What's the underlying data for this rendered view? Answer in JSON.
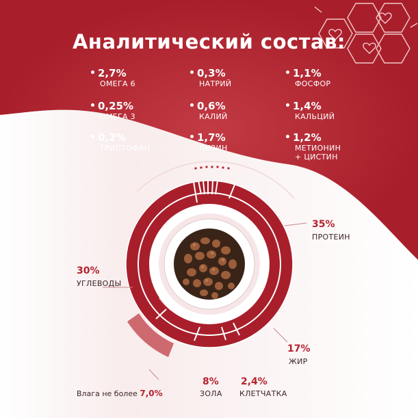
{
  "title": "Аналитический состав:",
  "colors": {
    "accent": "#b3242f",
    "dark_red": "#a81f2b",
    "light": "#ffffff"
  },
  "nutrients": [
    {
      "value": "2,7%",
      "label": "ОМЕГА 6"
    },
    {
      "value": "0,3%",
      "label": "НАТРИЙ"
    },
    {
      "value": "1,1%",
      "label": "ФОСФОР"
    },
    {
      "value": "0,25%",
      "label": "ОМЕГА 3"
    },
    {
      "value": "0,6%",
      "label": "КАЛИЙ"
    },
    {
      "value": "1,4%",
      "label": "КАЛЬЦИЙ"
    },
    {
      "value": "0,2%",
      "label": "ТРИПТОФАН"
    },
    {
      "value": "1,7%",
      "label": "ЛИЗИН"
    },
    {
      "value": "1,2%",
      "label": "МЕТИОНИН",
      "label2": "+ ЦИСТИН"
    }
  ],
  "composition": {
    "protein": {
      "value": "35%",
      "label": "ПРОТЕИН"
    },
    "fat": {
      "value": "17%",
      "label": "ЖИР"
    },
    "carbs": {
      "value": "30%",
      "label": "УГЛЕВОДЫ"
    },
    "ash": {
      "value": "8%",
      "label": "ЗОЛА"
    },
    "fiber": {
      "value": "2,4%",
      "label": "КЛЕТЧАТКА"
    },
    "moisture": {
      "label": "Влага не более",
      "value": "7,0%"
    }
  },
  "icons": {
    "decor": "hexagon-hearts-icon",
    "kibble": "kibble-bowl-image"
  }
}
